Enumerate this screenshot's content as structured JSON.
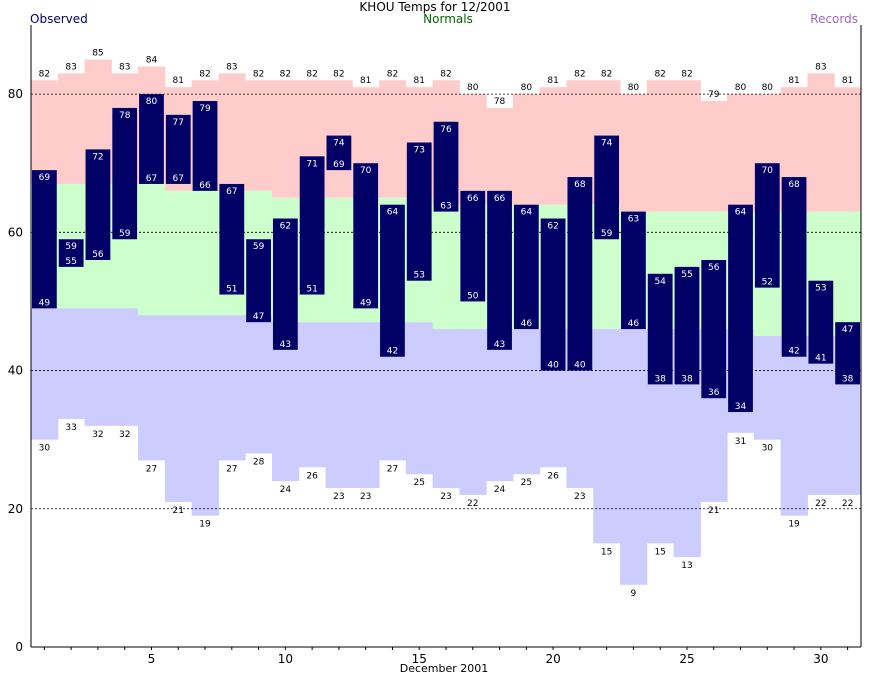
{
  "colors": {
    "record_band": "#ffcccc",
    "normal_band": "#ccffcc",
    "record_low_band": "#ccccff",
    "observed_bar": "#000066",
    "observed_label": "#000066",
    "normals_label": "#006600",
    "records_label": "#9966cc",
    "grid": "#000000"
  },
  "chart_data": {
    "type": "bar",
    "title": "KHOU Temps for 12/2001",
    "xlabel": "December 2001",
    "legend": {
      "observed": "Observed",
      "normals": "Normals",
      "records": "Records"
    },
    "ylim": [
      0,
      90
    ],
    "yticks": [
      0,
      20,
      40,
      60,
      80
    ],
    "xticks": [
      5,
      10,
      15,
      20,
      25,
      30
    ],
    "grid": "dashed horizontal at y ticks",
    "days": [
      1,
      2,
      3,
      4,
      5,
      6,
      7,
      8,
      9,
      10,
      11,
      12,
      13,
      14,
      15,
      16,
      17,
      18,
      19,
      20,
      21,
      22,
      23,
      24,
      25,
      26,
      27,
      28,
      29,
      30,
      31
    ],
    "record_high": [
      82,
      83,
      85,
      83,
      84,
      81,
      82,
      83,
      82,
      82,
      82,
      82,
      81,
      82,
      81,
      82,
      80,
      78,
      80,
      81,
      82,
      82,
      80,
      82,
      82,
      79,
      80,
      80,
      81,
      83,
      81
    ],
    "record_low": [
      30,
      33,
      32,
      32,
      27,
      21,
      19,
      27,
      28,
      24,
      26,
      23,
      23,
      27,
      25,
      23,
      22,
      24,
      25,
      26,
      23,
      15,
      9,
      15,
      13,
      21,
      31,
      30,
      19,
      22,
      22
    ],
    "normal_high": [
      67,
      67,
      67,
      67,
      67,
      66,
      66,
      66,
      66,
      65,
      65,
      65,
      65,
      65,
      65,
      64,
      64,
      64,
      64,
      64,
      64,
      64,
      63,
      63,
      63,
      63,
      63,
      63,
      63,
      63,
      63
    ],
    "normal_low": [
      49,
      49,
      49,
      49,
      48,
      48,
      48,
      48,
      48,
      47,
      47,
      47,
      47,
      47,
      47,
      46,
      46,
      46,
      46,
      46,
      46,
      46,
      46,
      46,
      46,
      46,
      46,
      45,
      45,
      45,
      45
    ],
    "observed_high": [
      69,
      59,
      72,
      78,
      80,
      77,
      79,
      67,
      59,
      62,
      71,
      74,
      70,
      64,
      73,
      76,
      66,
      66,
      64,
      62,
      68,
      74,
      63,
      54,
      55,
      56,
      64,
      70,
      68,
      53,
      47
    ],
    "observed_low": [
      49,
      55,
      56,
      59,
      67,
      67,
      66,
      51,
      47,
      43,
      51,
      69,
      49,
      42,
      53,
      63,
      50,
      43,
      46,
      40,
      40,
      59,
      46,
      38,
      38,
      36,
      34,
      52,
      42,
      41,
      38
    ],
    "observed_high_labels": [
      "69",
      "59",
      "72",
      "78",
      "80",
      "77",
      "79",
      "67",
      "59",
      "62",
      "71",
      "74",
      "70",
      "64",
      "73",
      "76",
      "66",
      "66",
      "64",
      "62",
      "68",
      "74",
      "63",
      "54",
      "55",
      "56",
      "64",
      "70",
      "68",
      "53",
      "47"
    ],
    "observed_low_labels": [
      "49",
      "55",
      "56",
      "59",
      "67",
      "67",
      "66",
      "51",
      "47",
      "43",
      "51",
      "69",
      "49",
      "42",
      "53",
      "63",
      "50",
      "43",
      "46",
      "40",
      "40",
      "59",
      "46",
      "38",
      "38",
      "36",
      "34",
      "52",
      "42",
      "41",
      "38"
    ],
    "record_high_labels": [
      "82",
      "83",
      "85",
      "83",
      "84",
      "81",
      "82",
      "83",
      "82",
      "82",
      "82",
      "82",
      "81",
      "82",
      "81",
      "82",
      "80",
      "78",
      "80",
      "81",
      "82",
      "82",
      "80",
      "82",
      "82",
      "79",
      "80",
      "80",
      "81",
      "83",
      "81"
    ],
    "record_low_labels": [
      "30",
      "33",
      "32",
      "32",
      "27",
      "21",
      "19",
      "27",
      "28",
      "24",
      "26",
      "23",
      "23",
      "27",
      "25",
      "23",
      "22",
      "24",
      "25",
      "26",
      "23",
      "15",
      "9",
      "15",
      "13",
      "21",
      "31",
      "30",
      "19",
      "22",
      "22"
    ],
    "ytick_labels": [
      "0",
      "20",
      "40",
      "60",
      "80"
    ],
    "xtick_labels": [
      "5",
      "10",
      "15",
      "20",
      "25",
      "30"
    ]
  }
}
